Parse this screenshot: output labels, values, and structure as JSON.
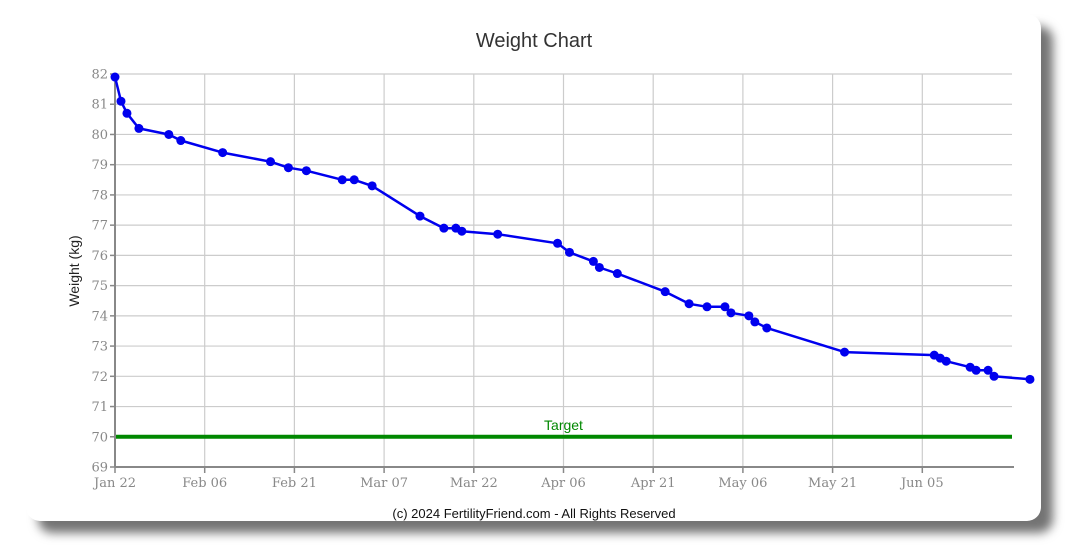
{
  "chart_data": {
    "type": "line",
    "title": "Weight Chart",
    "ylabel": "Weight (kg)",
    "xlabel": "",
    "ylim": [
      69,
      82
    ],
    "xlim": [
      "2024-01-22",
      "2024-06-20"
    ],
    "grid": true,
    "yticks": [
      69,
      70,
      71,
      72,
      73,
      74,
      75,
      76,
      77,
      78,
      79,
      80,
      81,
      82
    ],
    "xticks": [
      {
        "date": "2024-01-22",
        "label": "Jan 22"
      },
      {
        "date": "2024-02-06",
        "label": "Feb 06"
      },
      {
        "date": "2024-02-21",
        "label": "Feb 21"
      },
      {
        "date": "2024-03-07",
        "label": "Mar 07"
      },
      {
        "date": "2024-03-22",
        "label": "Mar 22"
      },
      {
        "date": "2024-04-06",
        "label": "Apr 06"
      },
      {
        "date": "2024-04-21",
        "label": "Apr 21"
      },
      {
        "date": "2024-05-06",
        "label": "May 06"
      },
      {
        "date": "2024-05-21",
        "label": "May 21"
      },
      {
        "date": "2024-06-05",
        "label": "Jun 05"
      }
    ],
    "series": [
      {
        "color": "#0000ee",
        "points": [
          {
            "x": "2024-01-22",
            "y": 81.9
          },
          {
            "x": "2024-01-23",
            "y": 81.1
          },
          {
            "x": "2024-01-24",
            "y": 80.7
          },
          {
            "x": "2024-01-26",
            "y": 80.2
          },
          {
            "x": "2024-01-31",
            "y": 80.0
          },
          {
            "x": "2024-02-02",
            "y": 79.8
          },
          {
            "x": "2024-02-09",
            "y": 79.4
          },
          {
            "x": "2024-02-17",
            "y": 79.1
          },
          {
            "x": "2024-02-20",
            "y": 78.9
          },
          {
            "x": "2024-02-23",
            "y": 78.8
          },
          {
            "x": "2024-02-29",
            "y": 78.5
          },
          {
            "x": "2024-03-02",
            "y": 78.5
          },
          {
            "x": "2024-03-05",
            "y": 78.3
          },
          {
            "x": "2024-03-13",
            "y": 77.3
          },
          {
            "x": "2024-03-17",
            "y": 76.9
          },
          {
            "x": "2024-03-19",
            "y": 76.9
          },
          {
            "x": "2024-03-20",
            "y": 76.8
          },
          {
            "x": "2024-03-26",
            "y": 76.7
          },
          {
            "x": "2024-04-05",
            "y": 76.4
          },
          {
            "x": "2024-04-07",
            "y": 76.1
          },
          {
            "x": "2024-04-11",
            "y": 75.8
          },
          {
            "x": "2024-04-12",
            "y": 75.6
          },
          {
            "x": "2024-04-15",
            "y": 75.4
          },
          {
            "x": "2024-04-23",
            "y": 74.8
          },
          {
            "x": "2024-04-27",
            "y": 74.4
          },
          {
            "x": "2024-04-30",
            "y": 74.3
          },
          {
            "x": "2024-05-03",
            "y": 74.3
          },
          {
            "x": "2024-05-04",
            "y": 74.1
          },
          {
            "x": "2024-05-07",
            "y": 74.0
          },
          {
            "x": "2024-05-08",
            "y": 73.8
          },
          {
            "x": "2024-05-10",
            "y": 73.6
          },
          {
            "x": "2024-05-23",
            "y": 72.8
          },
          {
            "x": "2024-06-07",
            "y": 72.7
          },
          {
            "x": "2024-06-08",
            "y": 72.6
          },
          {
            "x": "2024-06-09",
            "y": 72.5
          },
          {
            "x": "2024-06-13",
            "y": 72.3
          },
          {
            "x": "2024-06-14",
            "y": 72.2
          },
          {
            "x": "2024-06-16",
            "y": 72.2
          },
          {
            "x": "2024-06-17",
            "y": 72.0
          },
          {
            "x": "2024-06-23",
            "y": 71.9
          }
        ]
      }
    ],
    "target": {
      "label": "Target",
      "value": 70,
      "color": "#008800"
    }
  },
  "footer": {
    "copyright": "(c) 2024 FertilityFriend.com - All Rights Reserved"
  },
  "colors": {
    "line": "#0000ee",
    "target": "#008800",
    "grid": "#cccccc",
    "axis": "#888888"
  }
}
